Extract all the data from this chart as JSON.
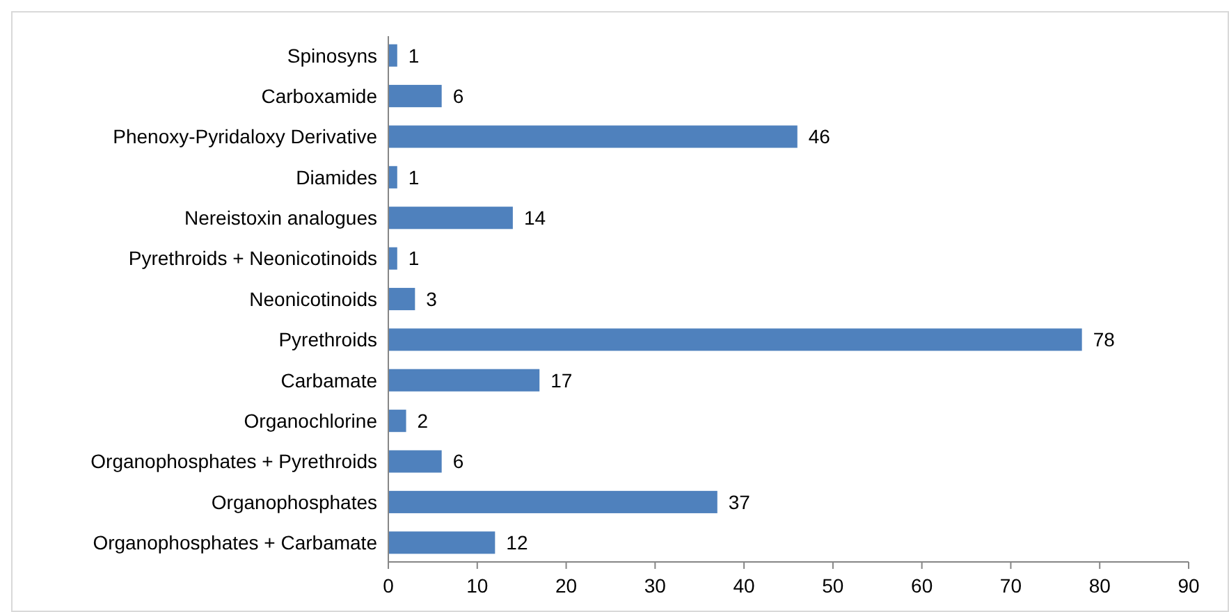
{
  "chart_data": {
    "type": "bar",
    "orientation": "horizontal",
    "categories": [
      "Spinosyns",
      "Carboxamide",
      "Phenoxy-Pyridaloxy Derivative",
      "Diamides",
      "Nereistoxin analogues",
      "Pyrethroids + Neonicotinoids",
      "Neonicotinoids",
      "Pyrethroids",
      "Carbamate",
      "Organochlorine",
      "Organophosphates + Pyrethroids",
      "Organophosphates",
      "Organophosphates + Carbamate"
    ],
    "values": [
      1,
      6,
      46,
      1,
      14,
      1,
      3,
      78,
      17,
      2,
      6,
      37,
      12
    ],
    "color": "#4f81bd",
    "xlim": [
      0,
      90
    ],
    "xticks": [
      0,
      10,
      20,
      30,
      40,
      50,
      60,
      70,
      80,
      90
    ],
    "data_labels": true
  }
}
